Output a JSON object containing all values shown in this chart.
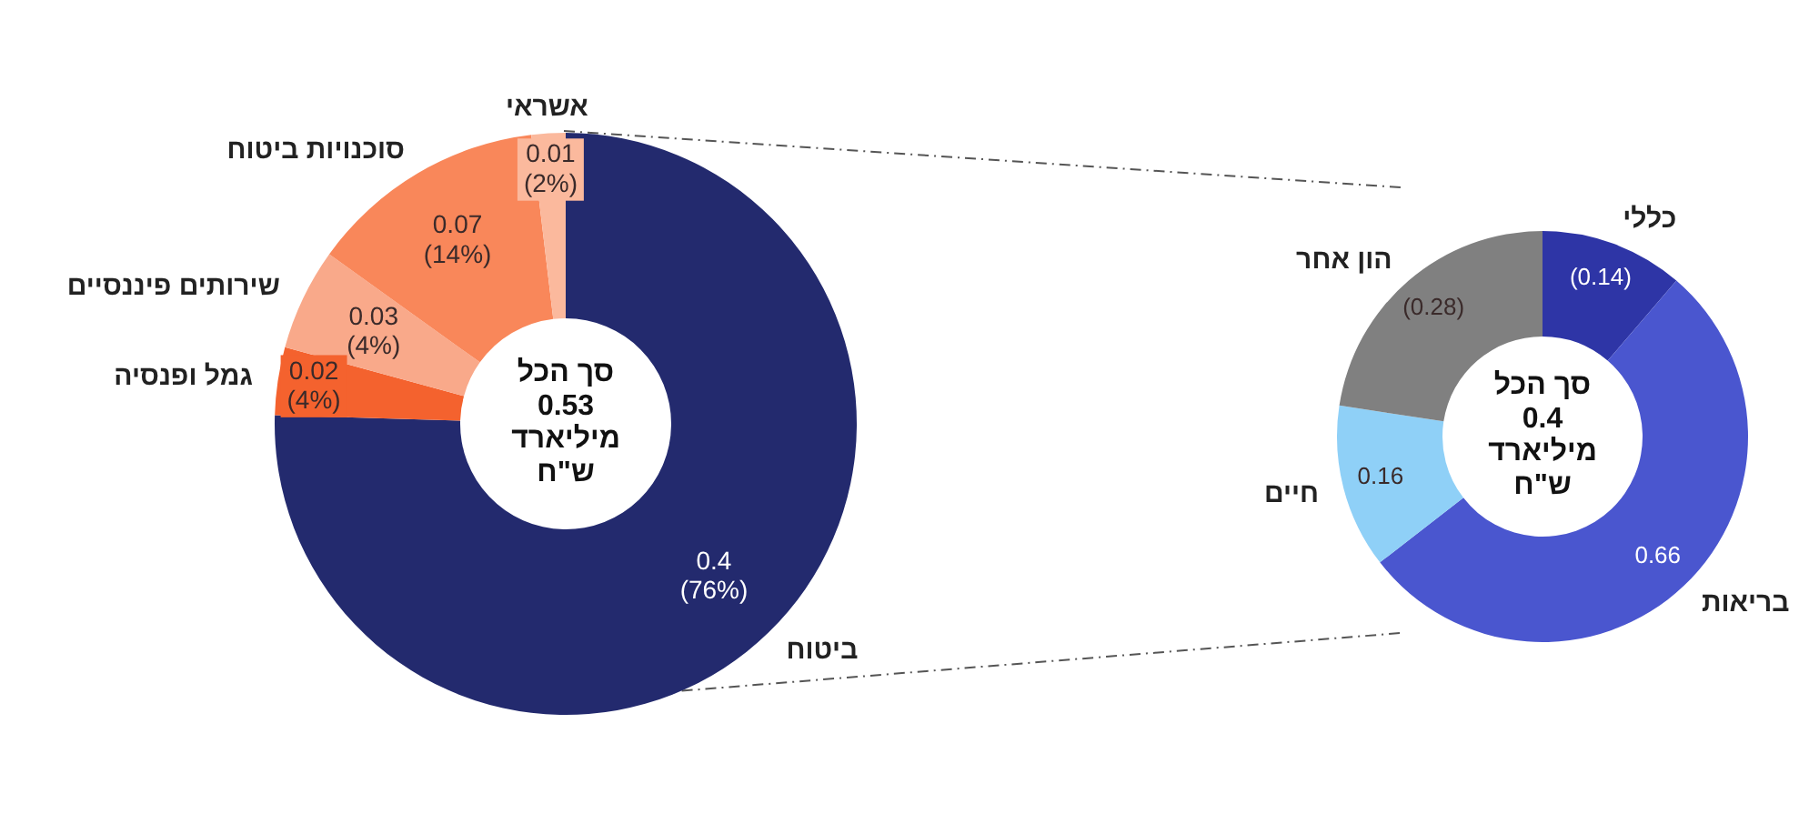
{
  "chart_data": [
    {
      "type": "donut",
      "categories": [
        "ביטוח",
        "גמל ופנסיה",
        "שירותים פיננסיים",
        "סוכנויות ביטוח",
        "אשראי"
      ],
      "values": [
        0.4,
        0.02,
        0.03,
        0.07,
        0.01
      ],
      "colors": [
        "#232a6e",
        "#f4622e",
        "#f9a98a",
        "#f9875a",
        "#fbb99d"
      ],
      "value_labels": [
        "0.4\n(76%)",
        "0.02\n(4%)",
        "0.03\n(4%)",
        "0.07\n(14%)",
        "0.01\n(2%)"
      ],
      "annotations": [
        "סך הכל\n0.53\nמיליארד\nש\"ח"
      ]
    },
    {
      "type": "donut",
      "categories": [
        "כללי",
        "בריאות",
        "חיים",
        "הון אחר"
      ],
      "values": [
        0.14,
        0.66,
        0.16,
        0.28
      ],
      "colors": [
        "#2e35a6",
        "#4a56cf",
        "#8fd0f7",
        "#808080"
      ],
      "value_labels": [
        "(0.14)",
        "0.66",
        "0.16",
        "(0.28)"
      ],
      "annotations": [
        "סך הכל\n0.4\nמיליארד\nש\"ח"
      ]
    }
  ]
}
